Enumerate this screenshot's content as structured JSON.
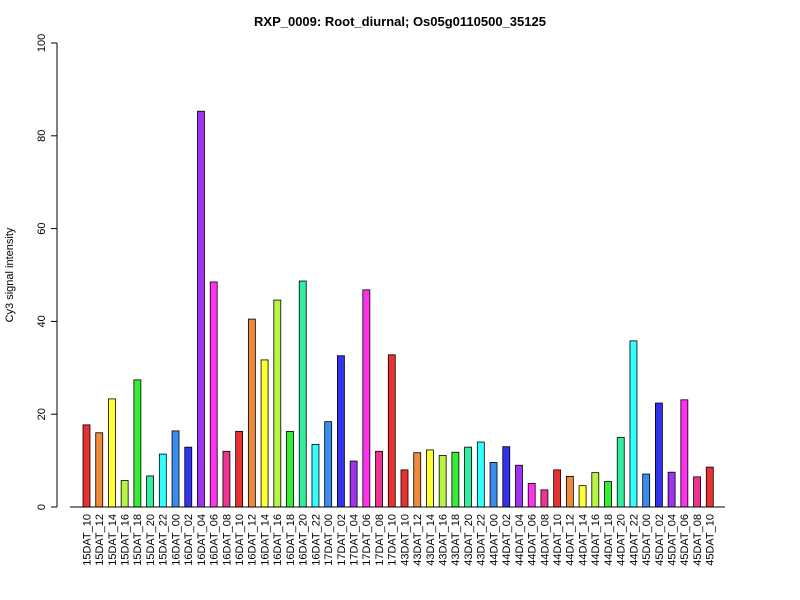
{
  "chart_data": {
    "type": "bar",
    "title": "RXP_0009: Root_diurnal; Os05g0110500_35125",
    "xlabel": "",
    "ylabel": "Cy3 signal intensity",
    "ylim": [
      0,
      100
    ],
    "yticks": [
      0,
      20,
      40,
      60,
      80,
      100
    ],
    "grid": false,
    "categories": [
      "15DAT_10",
      "15DAT_12",
      "15DAT_14",
      "15DAT_16",
      "15DAT_18",
      "15DAT_20",
      "15DAT_22",
      "16DAT_00",
      "16DAT_02",
      "16DAT_04",
      "16DAT_06",
      "16DAT_08",
      "16DAT_10",
      "16DAT_12",
      "16DAT_14",
      "16DAT_16",
      "16DAT_18",
      "16DAT_20",
      "16DAT_22",
      "17DAT_00",
      "17DAT_02",
      "17DAT_04",
      "17DAT_06",
      "17DAT_08",
      "17DAT_10",
      "43DAT_10",
      "43DAT_12",
      "43DAT_14",
      "43DAT_16",
      "43DAT_18",
      "43DAT_20",
      "43DAT_22",
      "44DAT_00",
      "44DAT_02",
      "44DAT_04",
      "44DAT_06",
      "44DAT_08",
      "44DAT_10",
      "44DAT_12",
      "44DAT_14",
      "44DAT_16",
      "44DAT_18",
      "44DAT_20",
      "44DAT_22",
      "45DAT_00",
      "45DAT_02",
      "45DAT_04",
      "45DAT_06",
      "45DAT_08",
      "45DAT_10"
    ],
    "values": [
      17.7,
      16.0,
      23.3,
      5.7,
      27.4,
      6.7,
      11.4,
      16.4,
      12.9,
      85.3,
      48.5,
      12.0,
      16.3,
      40.5,
      31.7,
      44.6,
      16.3,
      48.7,
      13.5,
      18.4,
      32.6,
      9.9,
      46.8,
      12.0,
      32.8,
      8.0,
      11.7,
      12.3,
      11.1,
      11.8,
      12.9,
      14.0,
      9.6,
      13.0,
      9.0,
      5.1,
      3.7,
      8.0,
      6.6,
      4.6,
      7.4,
      5.5,
      15.0,
      35.8,
      7.1,
      22.4,
      7.5,
      23.1,
      6.5,
      8.6
    ],
    "colors": [
      "#e83232",
      "#ee8a3c",
      "#ffff33",
      "#b7f542",
      "#33ee33",
      "#33eea0",
      "#33ffff",
      "#3a8cef",
      "#3333ee",
      "#a033ee",
      "#ff33ee",
      "#ee3390",
      "#e83232",
      "#ee8a3c",
      "#ffff33",
      "#b7f542",
      "#33ee33",
      "#33eea0",
      "#33ffff",
      "#3a8cef",
      "#3333ee",
      "#a033ee",
      "#ff33ee",
      "#ee3390",
      "#e83232",
      "#e83232",
      "#ee8a3c",
      "#ffff33",
      "#b7f542",
      "#33ee33",
      "#33eea0",
      "#33ffff",
      "#3a8cef",
      "#3333ee",
      "#a033ee",
      "#ff33ee",
      "#ee3390",
      "#e83232",
      "#ee8a3c",
      "#ffff33",
      "#b7f542",
      "#33ee33",
      "#33eea0",
      "#33ffff",
      "#3a8cef",
      "#3333ee",
      "#a033ee",
      "#ff33ee",
      "#ee3390",
      "#e83232"
    ]
  }
}
